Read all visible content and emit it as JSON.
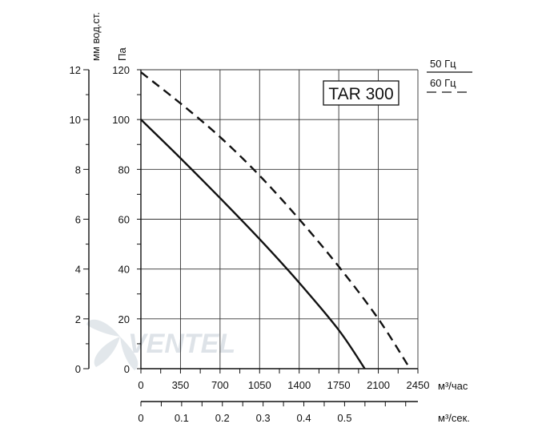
{
  "chart_data": {
    "type": "line",
    "annotations": {
      "model": "TAR 300"
    },
    "legend": {
      "placement": "top-right",
      "entries": [
        {
          "label": "50 Гц",
          "style": "solid"
        },
        {
          "label": "60 Гц",
          "style": "dashed"
        }
      ]
    },
    "axes": {
      "x_primary": {
        "unit_label": "м³/час",
        "range": [
          0,
          2450
        ],
        "ticks": [
          0,
          350,
          700,
          1050,
          1400,
          1750,
          2100,
          2450
        ],
        "tick_labels": [
          "0",
          "350",
          "700",
          "1050",
          "1400",
          "1750",
          "2100",
          "2450"
        ]
      },
      "x_secondary": {
        "unit_label": "м³/сек.",
        "range": [
          0,
          0.68
        ],
        "ticks": [
          0,
          0.1,
          0.2,
          0.3,
          0.4,
          0.5
        ],
        "tick_labels": [
          "0",
          "0.1",
          "0.2",
          "0.3",
          "0.4",
          "0.5"
        ]
      },
      "y_primary": {
        "unit_label": "Па",
        "range": [
          0,
          120
        ],
        "ticks": [
          0,
          20,
          40,
          60,
          80,
          100,
          120
        ],
        "tick_labels": [
          "0",
          "20",
          "40",
          "60",
          "80",
          "100",
          "120"
        ]
      },
      "y_secondary": {
        "unit_label": "мм вод.ст.",
        "range": [
          0,
          12
        ],
        "ticks": [
          0,
          2,
          4,
          6,
          8,
          10,
          12
        ],
        "tick_labels": [
          "0",
          "2",
          "4",
          "6",
          "8",
          "10",
          "12"
        ]
      }
    },
    "grid": true,
    "series": [
      {
        "name": "50 Гц",
        "style": "solid",
        "x": [
          0,
          350,
          700,
          1050,
          1400,
          1750,
          1980
        ],
        "y": [
          100,
          84.5,
          68.5,
          52,
          34.5,
          15.5,
          0
        ]
      },
      {
        "name": "60 Гц",
        "style": "dashed",
        "x": [
          0,
          350,
          700,
          1050,
          1400,
          1750,
          2100,
          2380
        ],
        "y": [
          119,
          106.5,
          93,
          77.5,
          60,
          41,
          20,
          0
        ]
      }
    ]
  },
  "watermark": {
    "text": "VENTEL"
  }
}
